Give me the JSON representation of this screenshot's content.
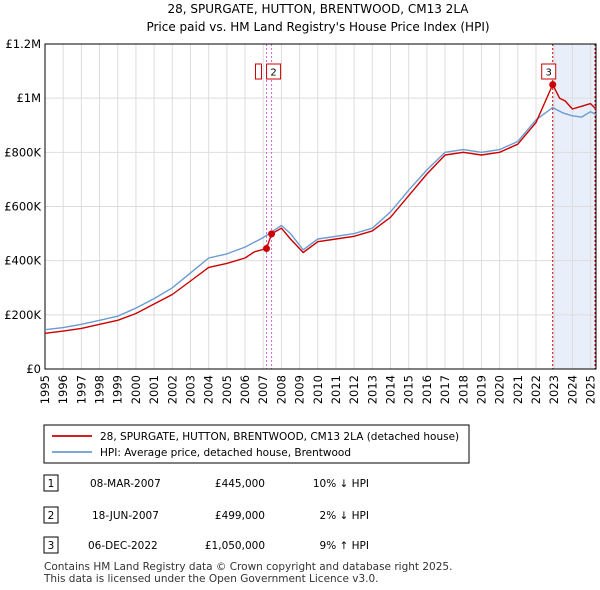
{
  "chart_data": {
    "type": "line",
    "title": "28, SPURGATE, HUTTON, BRENTWOOD, CM13 2LA",
    "subtitle": "Price paid vs. HM Land Registry's House Price Index (HPI)",
    "xlim": [
      1995,
      2025.3
    ],
    "ylim": [
      0,
      1200000
    ],
    "x_ticks": [
      1995,
      1996,
      1997,
      1998,
      1999,
      2000,
      2001,
      2002,
      2003,
      2004,
      2005,
      2006,
      2007,
      2008,
      2009,
      2010,
      2011,
      2012,
      2013,
      2014,
      2015,
      2016,
      2017,
      2018,
      2019,
      2020,
      2021,
      2022,
      2023,
      2024,
      2025
    ],
    "y_ticks": [
      {
        "value": 0,
        "label": "£0"
      },
      {
        "value": 200000,
        "label": "£200K"
      },
      {
        "value": 400000,
        "label": "£400K"
      },
      {
        "value": 600000,
        "label": "£600K"
      },
      {
        "value": 800000,
        "label": "£800K"
      },
      {
        "value": 1000000,
        "label": "£1M"
      },
      {
        "value": 1200000,
        "label": "£1.2M"
      }
    ],
    "highlight_span": {
      "start": 2022.92,
      "end": 2025.3
    },
    "colors": {
      "property": "#cc0000",
      "hpi": "#6b9bd1",
      "marker_line": "#cc66cc",
      "span_fill": "#e8eefa",
      "span_line": "#cc0000",
      "grid": "#dddddd"
    },
    "series": [
      {
        "name": "28, SPURGATE, HUTTON, BRENTWOOD, CM13 2LA (detached house)",
        "color": "#cc0000",
        "x": [
          1995,
          1996,
          1997,
          1998,
          1999,
          2000,
          2001,
          2002,
          2003,
          2004,
          2005,
          2006,
          2006.5,
          2007.18,
          2007.46,
          2008,
          2008.5,
          2009.2,
          2010,
          2011,
          2012,
          2013,
          2014,
          2015,
          2016,
          2017,
          2018,
          2019,
          2020,
          2021,
          2022,
          2022.92,
          2023.3,
          2023.6,
          2024,
          2024.5,
          2025,
          2025.3
        ],
        "y": [
          132000,
          140000,
          150000,
          165000,
          180000,
          205000,
          240000,
          275000,
          325000,
          375000,
          390000,
          410000,
          432000,
          445000,
          499000,
          520000,
          480000,
          430000,
          470000,
          480000,
          490000,
          510000,
          560000,
          640000,
          720000,
          790000,
          800000,
          790000,
          800000,
          830000,
          910000,
          1050000,
          1000000,
          990000,
          960000,
          970000,
          980000,
          960000
        ]
      },
      {
        "name": "HPI: Average price, detached house, Brentwood",
        "color": "#6b9bd1",
        "x": [
          1995,
          1996,
          1997,
          1998,
          1999,
          2000,
          2001,
          2002,
          2003,
          2004,
          2005,
          2006,
          2007,
          2008,
          2008.5,
          2009.2,
          2010,
          2011,
          2012,
          2013,
          2014,
          2015,
          2016,
          2017,
          2018,
          2019,
          2020,
          2021,
          2022,
          2022.92,
          2023.5,
          2024,
          2024.5,
          2025,
          2025.3
        ],
        "y": [
          145000,
          153000,
          165000,
          180000,
          195000,
          225000,
          260000,
          300000,
          355000,
          410000,
          425000,
          450000,
          485000,
          530000,
          500000,
          440000,
          480000,
          490000,
          500000,
          520000,
          580000,
          660000,
          735000,
          800000,
          810000,
          800000,
          810000,
          840000,
          920000,
          965000,
          945000,
          935000,
          930000,
          950000,
          940000
        ]
      }
    ],
    "sales": [
      {
        "label": "1",
        "x": 2007.18,
        "y": 445000,
        "date": "08-MAR-2007",
        "price": "£445,000",
        "hpi": "10% ↓ HPI"
      },
      {
        "label": "2",
        "x": 2007.46,
        "y": 499000,
        "date": "18-JUN-2007",
        "price": "£499,000",
        "hpi": "2% ↓ HPI"
      },
      {
        "label": "3",
        "x": 2022.92,
        "y": 1050000,
        "date": "06-DEC-2022",
        "price": "£1,050,000",
        "hpi": "9% ↑ HPI"
      }
    ]
  },
  "legend": {
    "property_label": "28, SPURGATE, HUTTON, BRENTWOOD, CM13 2LA (detached house)",
    "hpi_label": "HPI: Average price, detached house, Brentwood"
  },
  "footer": {
    "line1": "Contains HM Land Registry data © Crown copyright and database right 2025.",
    "line2": "This data is licensed under the Open Government Licence v3.0."
  }
}
